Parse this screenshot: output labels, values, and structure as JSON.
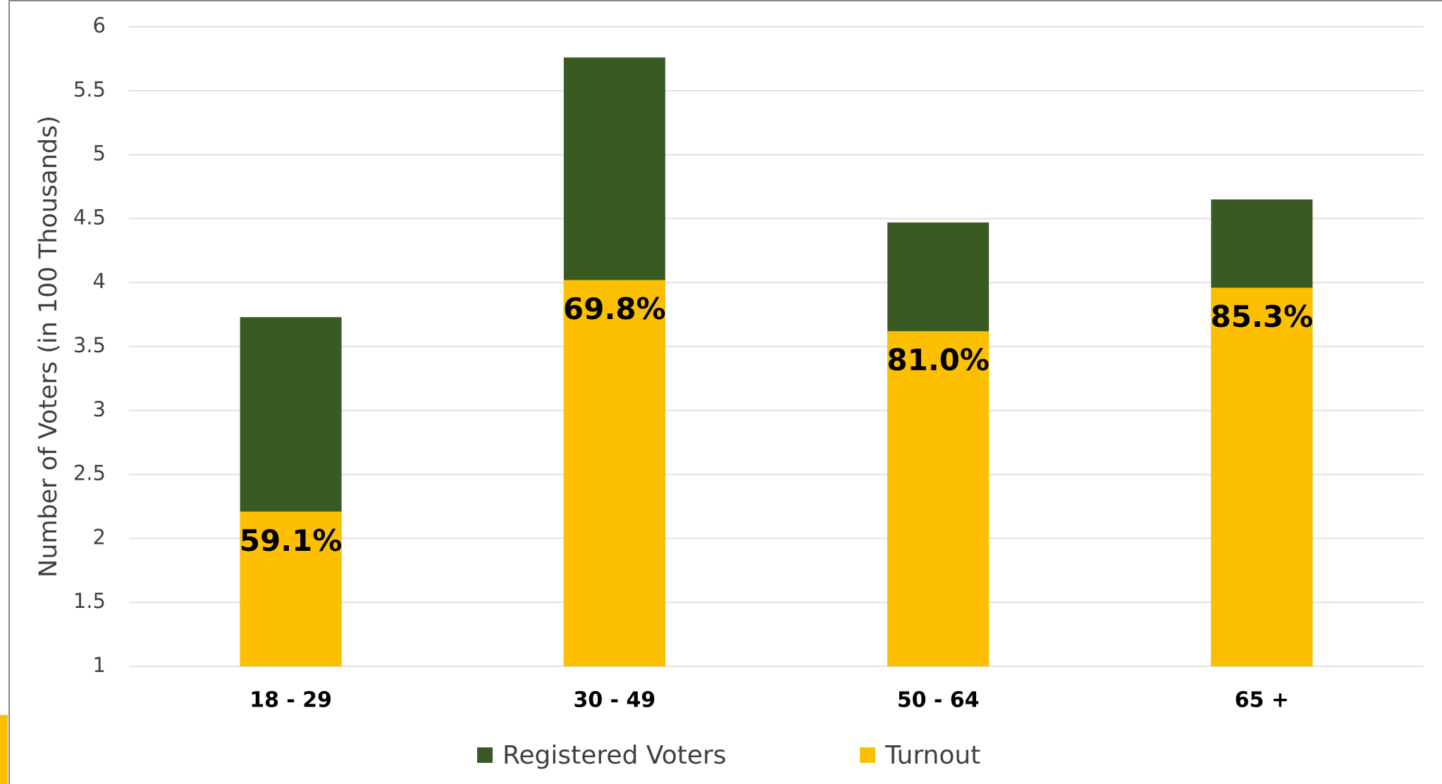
{
  "chart_data": {
    "type": "overlapped_bar",
    "y_label": "Number of Voters (in 100 Thousands)",
    "categories": [
      "18 - 29",
      "30 - 49",
      "50 - 64",
      "65 +"
    ],
    "series": [
      {
        "name": "Registered Voters",
        "color": "#3a5a24",
        "values": [
          3.73,
          5.76,
          4.47,
          4.65
        ]
      },
      {
        "name": "Turnout",
        "color": "#fdc000",
        "values": [
          2.21,
          4.02,
          3.62,
          3.96
        ]
      }
    ],
    "rate_labels": [
      "59.1%",
      "69.8%",
      "81.0%",
      "85.3%"
    ],
    "ylim": [
      1,
      6
    ],
    "yticks": [
      1,
      1.5,
      2,
      2.5,
      3,
      3.5,
      4,
      4.5,
      5,
      5.5,
      6
    ],
    "grid": true
  }
}
